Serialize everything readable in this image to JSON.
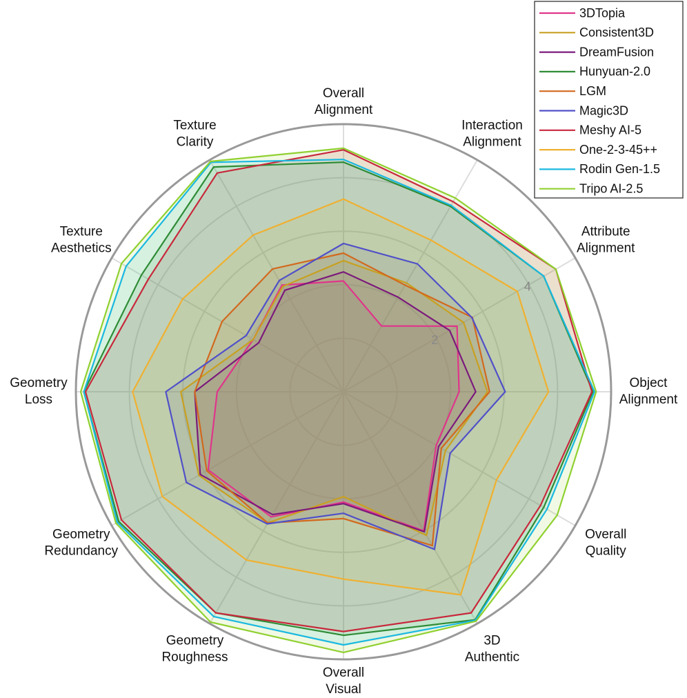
{
  "chart_data": {
    "type": "radar",
    "categories": [
      "Overall\nAlignment",
      "Interaction\nAlignment",
      "Attribute\nAlignment",
      "Object\nAlignment",
      "Overall\nQuality",
      "3D\nAuthentic",
      "Overall\nVisual",
      "Geometry\nRoughness",
      "Geometry\nRedundancy",
      "Geometry\nLoss",
      "Texture\nAesthetics",
      "Texture\nClarity"
    ],
    "rlim": [
      0,
      5
    ],
    "rticks": [
      {
        "value": 1,
        "label": null
      },
      2,
      {
        "value": 3,
        "label": null
      },
      4
    ],
    "grid": true,
    "legend": "top-right",
    "series": [
      {
        "name": "3DTopia",
        "color": "#e0358a",
        "values": [
          2.07,
          1.42,
          2.45,
          2.16,
          2.0,
          3.0,
          2.06,
          2.7,
          2.92,
          2.36,
          1.95,
          2.3
        ]
      },
      {
        "name": "Consistent3D",
        "color": "#c8a020",
        "values": [
          2.45,
          2.35,
          2.59,
          2.69,
          2.2,
          3.1,
          1.96,
          2.83,
          3.12,
          3.04,
          1.95,
          2.27
        ]
      },
      {
        "name": "DreamFusion",
        "color": "#7b1a7b",
        "values": [
          2.24,
          2.04,
          2.29,
          2.47,
          2.05,
          3.02,
          2.09,
          2.65,
          3.09,
          2.78,
          1.83,
          2.19
        ]
      },
      {
        "name": "Hunyuan-2.0",
        "color": "#2e8b35",
        "values": [
          4.29,
          4.0,
          4.32,
          4.66,
          4.32,
          4.92,
          4.55,
          4.77,
          4.85,
          4.85,
          4.36,
          4.85
        ]
      },
      {
        "name": "LGM",
        "color": "#d2691e",
        "values": [
          2.59,
          2.3,
          2.78,
          2.73,
          2.11,
          3.32,
          2.37,
          2.83,
          2.95,
          2.78,
          2.62,
          2.65
        ]
      },
      {
        "name": "Magic3D",
        "color": "#5050c8",
        "values": [
          2.77,
          2.76,
          2.77,
          3.02,
          2.3,
          3.4,
          2.27,
          2.85,
          3.39,
          3.32,
          2.1,
          2.4
        ]
      },
      {
        "name": "Meshy AI-5",
        "color": "#c8283c",
        "values": [
          4.52,
          4.1,
          4.58,
          4.64,
          4.25,
          4.77,
          4.48,
          4.77,
          4.79,
          4.82,
          4.21,
          4.72
        ]
      },
      {
        "name": "One-2-3-45++",
        "color": "#f0b030",
        "values": [
          3.6,
          3.27,
          3.75,
          3.83,
          3.3,
          4.38,
          3.5,
          3.63,
          3.91,
          3.94,
          3.47,
          3.38
        ]
      },
      {
        "name": "Rodin Gen-1.5",
        "color": "#1ab8e0",
        "values": [
          4.34,
          4.02,
          4.32,
          4.69,
          4.39,
          4.93,
          4.73,
          4.85,
          4.88,
          4.85,
          4.69,
          4.95
        ]
      },
      {
        "name": "Tripo AI-2.5",
        "color": "#90d030",
        "values": [
          4.55,
          4.18,
          4.58,
          4.72,
          4.61,
          4.95,
          4.87,
          4.97,
          4.91,
          4.91,
          4.79,
          4.97
        ]
      }
    ]
  }
}
